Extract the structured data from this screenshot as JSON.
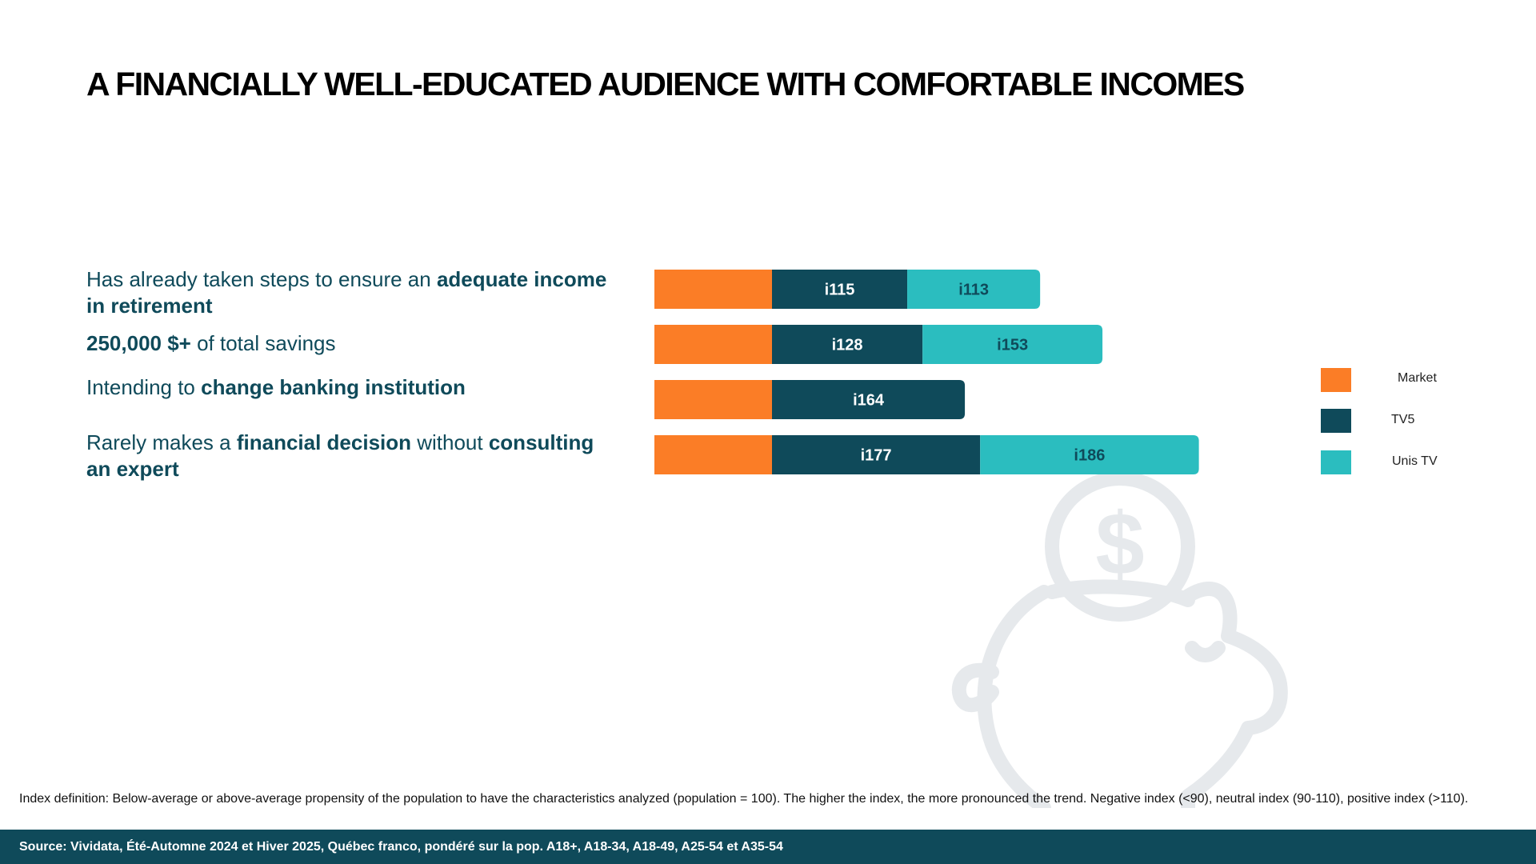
{
  "title": "A FINANCIALLY WELL-EDUCATED AUDIENCE WITH COMFORTABLE INCOMES",
  "rows": [
    {
      "pre": "Has already taken steps to ensure an ",
      "bold1": "adequate income in retirement",
      "mid": "",
      "bold2": "",
      "post": ""
    },
    {
      "pre": "",
      "bold1": "250,000 $+",
      "mid": " of total savings",
      "bold2": "",
      "post": ""
    },
    {
      "pre": "Intending to ",
      "bold1": "change banking institution",
      "mid": "",
      "bold2": "",
      "post": ""
    },
    {
      "pre": "Rarely makes a ",
      "bold1": "financial decision",
      "mid": " without ",
      "bold2": "consulting an expert",
      "post": ""
    }
  ],
  "colors": {
    "market": "#fb7d26",
    "tv5": "#0f4a5a",
    "unis": "#2bbdbf",
    "label_light": "#ffffff",
    "label_dark": "#0f4a5a"
  },
  "chart_data": {
    "type": "bar",
    "stacked": true,
    "orientation": "horizontal",
    "categories": [
      "Has already taken steps to ensure an adequate income in retirement",
      "250,000 $+ of total savings",
      "Intending to change banking institution",
      "Rarely makes a financial decision without consulting an expert"
    ],
    "series": [
      {
        "name": "Market",
        "values": [
          100,
          100,
          100,
          100
        ],
        "labels": [
          "",
          "",
          "",
          ""
        ]
      },
      {
        "name": "TV5",
        "values": [
          115,
          128,
          164,
          177
        ],
        "labels": [
          "i115",
          "i128",
          "i164",
          "i177"
        ]
      },
      {
        "name": "Unis TV",
        "values": [
          113,
          153,
          null,
          186
        ],
        "labels": [
          "i113",
          "i153",
          "",
          "i186"
        ]
      }
    ],
    "legend": {
      "position": "right",
      "entries": [
        "Market",
        "TV5",
        "Unis TV"
      ]
    },
    "grid": false
  },
  "footnote": "Index definition: Below-average or above-average propensity of the population to have the characteristics analyzed (population = 100). The higher the index, the more pronounced the trend. Negative index (<90), neutral index (90-110), positive index (>110).",
  "source": "Source: Vividata, Été-Automne 2024 et Hiver 2025, Québec franco, pondéré sur la pop. A18+, A18-34, A18-49, A25-54 et A35-54",
  "icon": "piggy-bank-icon"
}
